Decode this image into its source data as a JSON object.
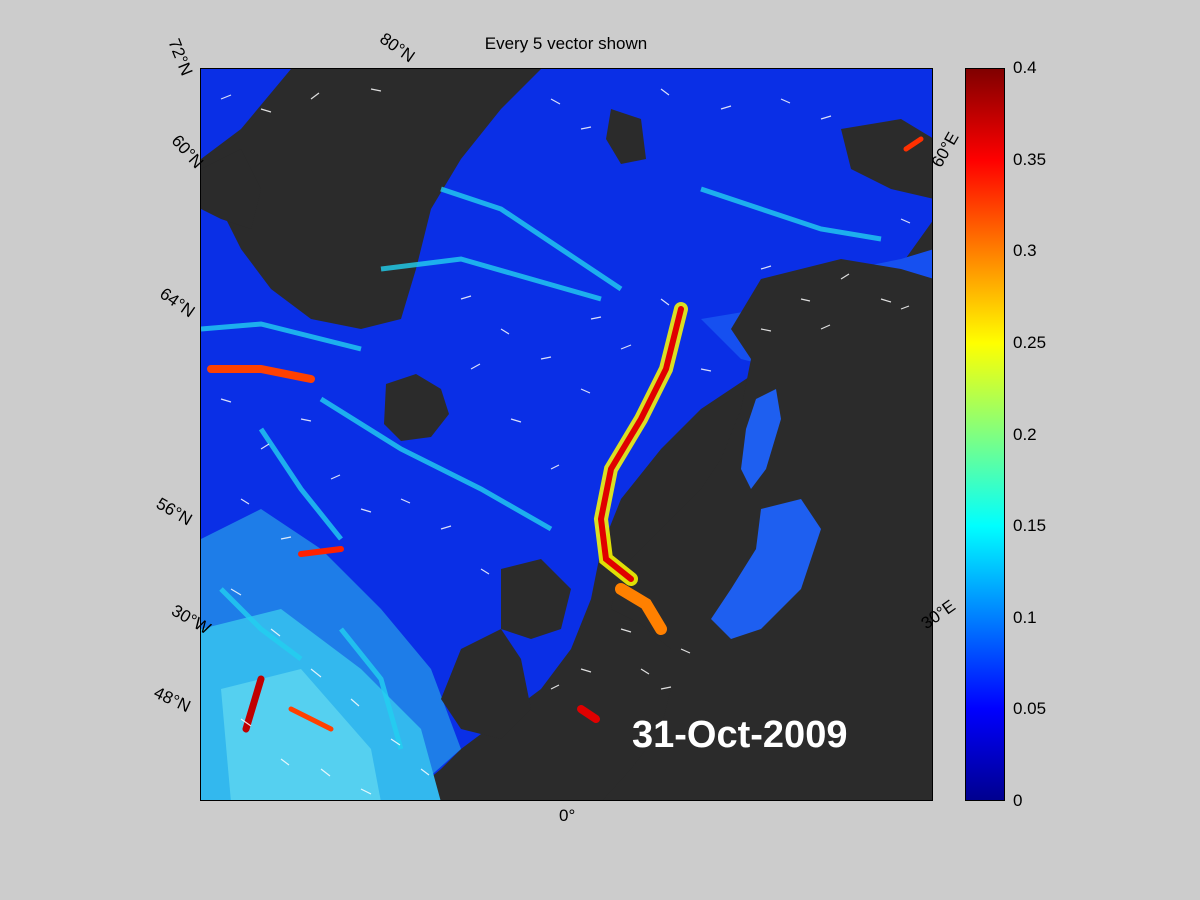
{
  "title": "Every 5 vector shown",
  "date_label": "31-Oct-2009",
  "lat_labels": [
    "72°N",
    "60°N",
    "64°N",
    "56°N",
    "48°N"
  ],
  "lon_labels": [
    "80°N",
    "60°E",
    "30°W",
    "0°",
    "30°E"
  ],
  "colorbar": {
    "ticks": [
      "0",
      "0.05",
      "0.1",
      "0.15",
      "0.2",
      "0.25",
      "0.3",
      "0.35",
      "0.4"
    ],
    "range": [
      0,
      0.4
    ],
    "colormap": "jet"
  },
  "colors": {
    "background": "#cccccc",
    "land": "#2b2b2b",
    "low_speed": "#0000ff",
    "high_speed": "#ff0000",
    "vectors": "#ffffff"
  },
  "vector_subsampling": 5
}
